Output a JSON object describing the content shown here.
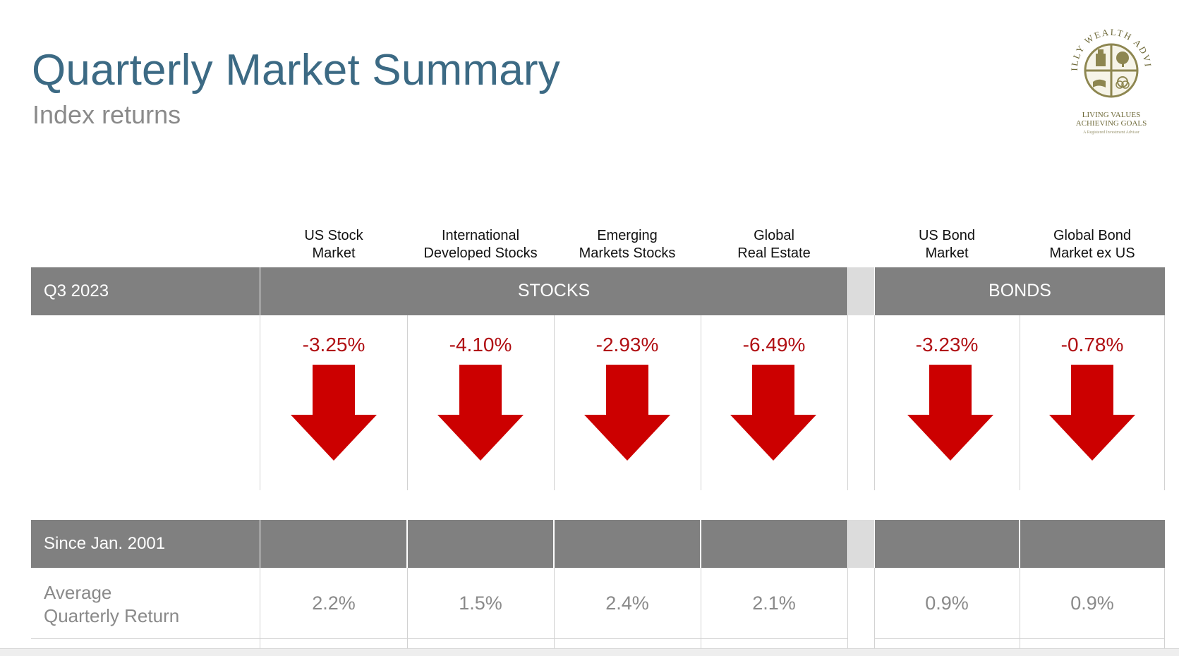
{
  "header": {
    "title": "Quarterly Market Summary",
    "subtitle": "Index returns"
  },
  "logo": {
    "arc_text": "O'REILLY WEALTH ADVISORS",
    "tagline_1": "LIVING VALUES",
    "tagline_2": "ACHIEVING GOALS",
    "fine_print": "A Registered Investment Advisor"
  },
  "columns": [
    {
      "line1": "US Stock",
      "line2": "Market"
    },
    {
      "line1": "International",
      "line2": "Developed Stocks"
    },
    {
      "line1": "Emerging",
      "line2": "Markets Stocks"
    },
    {
      "line1": "Global",
      "line2": "Real Estate"
    },
    {
      "line1": "US Bond",
      "line2": "Market"
    },
    {
      "line1": "Global Bond",
      "line2": "Market ex US"
    }
  ],
  "quarter": {
    "label": "Q3 2023",
    "stocks_label": "STOCKS",
    "bonds_label": "BONDS",
    "returns": [
      "-3.25%",
      "-4.10%",
      "-2.93%",
      "-6.49%",
      "-3.23%",
      "-0.78%"
    ],
    "direction": "down"
  },
  "since": {
    "label": "Since Jan. 2001",
    "avg_label_1": "Average",
    "avg_label_2": "Quarterly Return",
    "values": [
      "2.2%",
      "1.5%",
      "2.4%",
      "2.1%",
      "0.9%",
      "0.9%"
    ]
  },
  "colors": {
    "title": "#3c6a84",
    "band": "#808080",
    "negative": "#b00f13",
    "arrow": "#cc0000"
  }
}
